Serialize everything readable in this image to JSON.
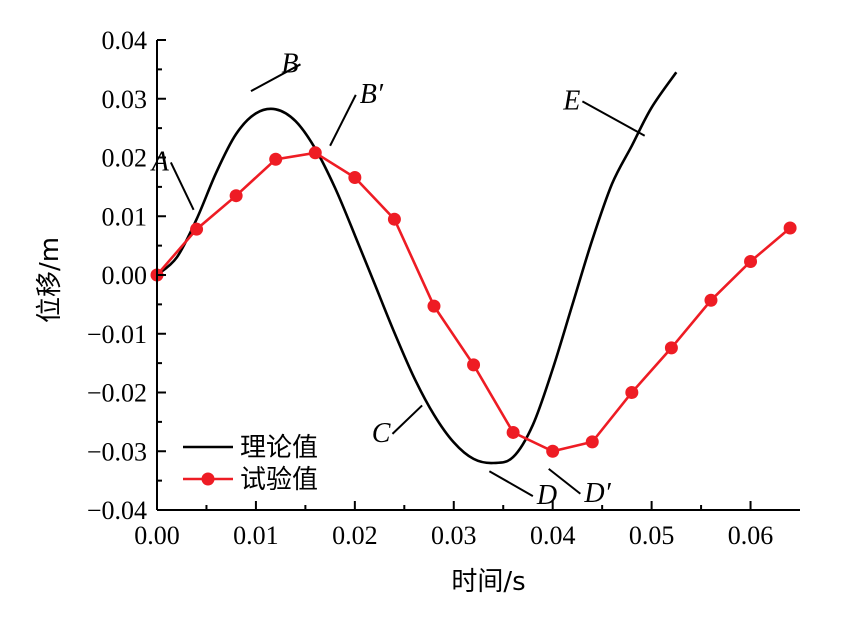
{
  "chart_data": {
    "type": "line",
    "title": "",
    "xlabel": "时间/s",
    "ylabel": "位移/m",
    "xlim": [
      0,
      0.065
    ],
    "ylim": [
      -0.04,
      0.04
    ],
    "x_ticks": [
      "0.00",
      "0.01",
      "0.02",
      "0.03",
      "0.04",
      "0.05",
      "0.06"
    ],
    "y_ticks": [
      "−0.04",
      "−0.03",
      "−0.02",
      "−0.01",
      "0.00",
      "0.01",
      "0.02",
      "0.03",
      "0.04"
    ],
    "x_tick_values": [
      0,
      0.01,
      0.02,
      0.03,
      0.04,
      0.05,
      0.06
    ],
    "y_tick_values": [
      -0.04,
      -0.03,
      -0.02,
      -0.01,
      0,
      0.01,
      0.02,
      0.03,
      0.04
    ],
    "grid": false,
    "legend_position": "bottom-left",
    "series": [
      {
        "name": "理论值",
        "color": "#000000",
        "marker": "none",
        "x": [
          0,
          0.002,
          0.004,
          0.006,
          0.008,
          0.01,
          0.012,
          0.014,
          0.016,
          0.018,
          0.02,
          0.022,
          0.024,
          0.026,
          0.028,
          0.03,
          0.032,
          0.034,
          0.036,
          0.038,
          0.04,
          0.042,
          0.044,
          0.046,
          0.048,
          0.05,
          0.0525
        ],
        "y": [
          0,
          0.003,
          0.0095,
          0.0175,
          0.024,
          0.0275,
          0.0282,
          0.0262,
          0.0215,
          0.0148,
          0.0068,
          -0.0015,
          -0.0098,
          -0.0175,
          -0.0238,
          -0.0285,
          -0.0313,
          -0.032,
          -0.031,
          -0.0255,
          -0.016,
          -0.005,
          0.006,
          0.0155,
          0.022,
          0.0285,
          0.0345
        ]
      },
      {
        "name": "试验值",
        "color": "#ee1c24",
        "marker": "circle",
        "x": [
          0,
          0.004,
          0.008,
          0.012,
          0.016,
          0.02,
          0.024,
          0.028,
          0.032,
          0.036,
          0.04,
          0.044,
          0.048,
          0.052,
          0.056,
          0.06,
          0.064
        ],
        "y": [
          0,
          0.0078,
          0.0135,
          0.0197,
          0.0208,
          0.0166,
          0.0095,
          -0.0053,
          -0.0153,
          -0.0268,
          -0.03,
          -0.0284,
          -0.02,
          -0.0124,
          -0.0043,
          0.0023,
          0.008
        ]
      }
    ],
    "annotations": [
      {
        "label": "A",
        "x": 0.0012,
        "y": 0.0178,
        "line_to": [
          0.0037,
          0.0111
        ],
        "anchor": "end"
      },
      {
        "label": "B",
        "x": 0.0143,
        "y": 0.0345,
        "line_to": [
          0.0095,
          0.0313
        ],
        "anchor": "end"
      },
      {
        "label": "B′",
        "x": 0.0205,
        "y": 0.0293,
        "line_to": [
          0.0175,
          0.022
        ],
        "anchor": "start"
      },
      {
        "label": "C",
        "x": 0.0236,
        "y": -0.0284,
        "line_to": [
          0.0268,
          -0.0222
        ],
        "anchor": "end"
      },
      {
        "label": "D",
        "x": 0.0384,
        "y": -0.039,
        "line_to": [
          0.0336,
          -0.0334
        ],
        "anchor": "start"
      },
      {
        "label": "D′",
        "x": 0.0432,
        "y": -0.0386,
        "line_to": [
          0.0396,
          -0.033
        ],
        "anchor": "start"
      },
      {
        "label": "E",
        "x": 0.0428,
        "y": 0.0282,
        "line_to": [
          0.0493,
          0.0237
        ],
        "anchor": "end"
      }
    ]
  }
}
